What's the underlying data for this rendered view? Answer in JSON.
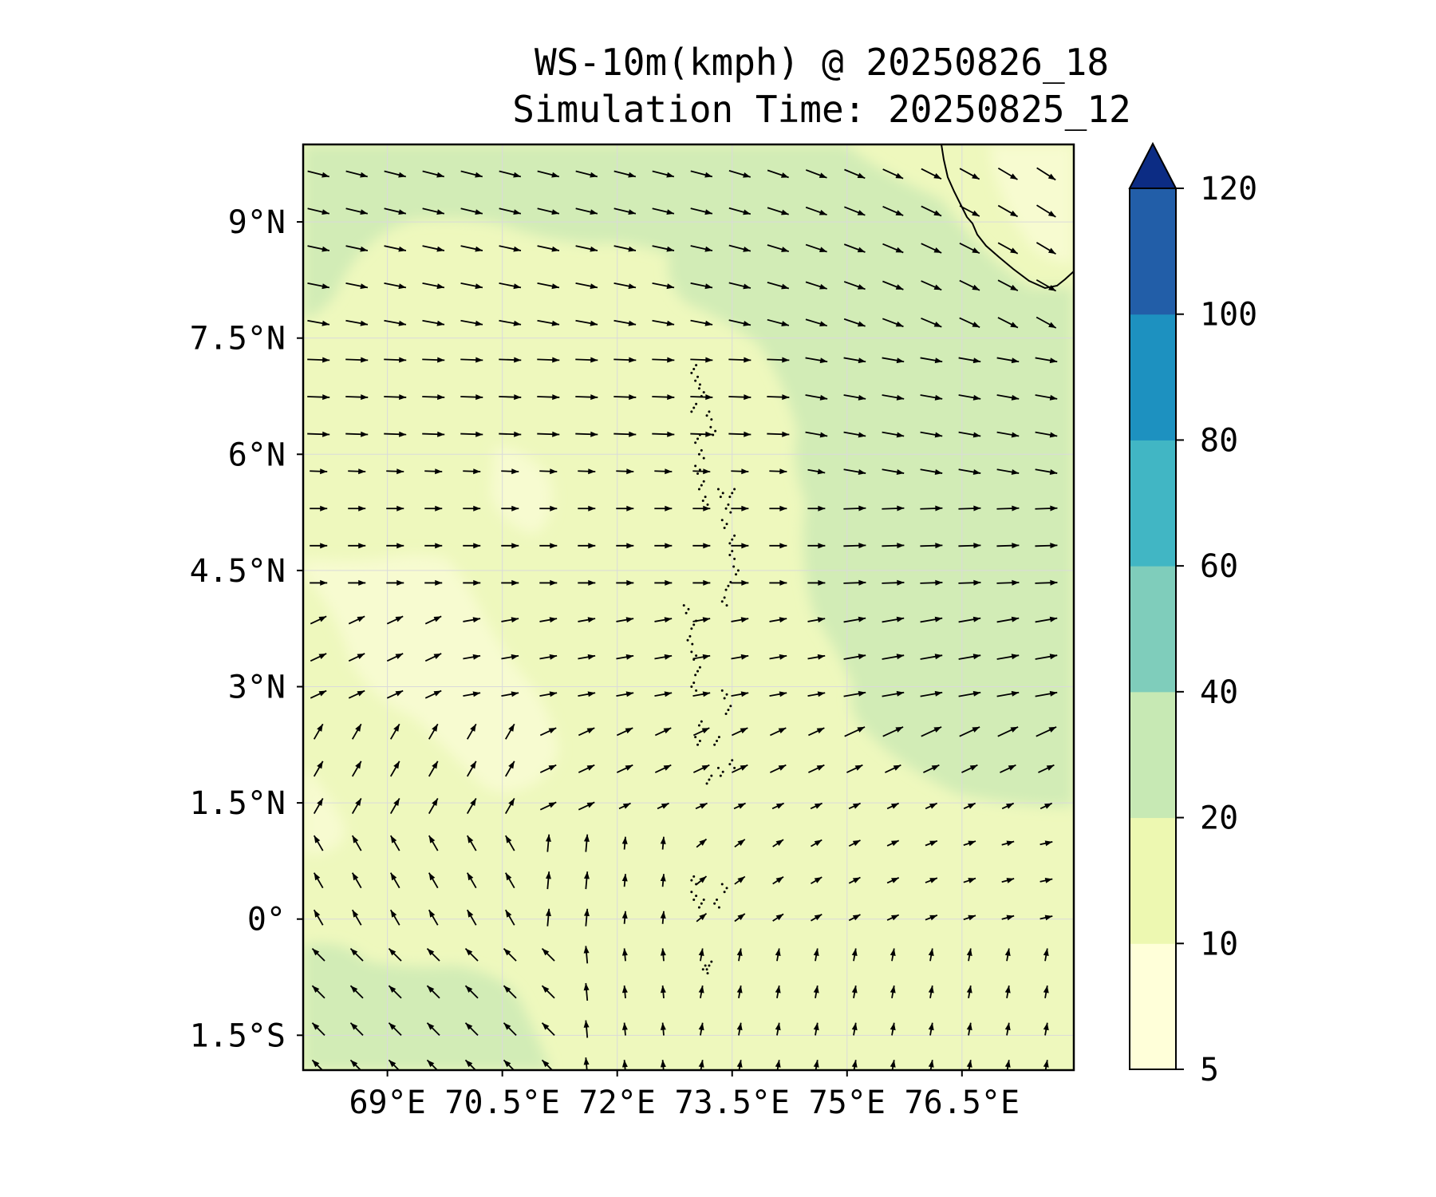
{
  "title": {
    "line1": "WS-10m(kmph) @ 20250826_18",
    "line2": "Simulation Time: 20250825_12"
  },
  "map": {
    "lon_range": [
      67.9,
      77.96
    ],
    "lat_range": [
      -1.95,
      10.0
    ],
    "lat_ticks": [
      {
        "value": 9,
        "label": "9°N"
      },
      {
        "value": 7.5,
        "label": "7.5°N"
      },
      {
        "value": 6,
        "label": "6°N"
      },
      {
        "value": 4.5,
        "label": "4.5°N"
      },
      {
        "value": 3,
        "label": "3°N"
      },
      {
        "value": 1.5,
        "label": "1.5°N"
      },
      {
        "value": 0,
        "label": "0°"
      },
      {
        "value": -1.5,
        "label": "1.5°S"
      }
    ],
    "lon_ticks": [
      {
        "value": 69,
        "label": "69°E"
      },
      {
        "value": 70.5,
        "label": "70.5°E"
      },
      {
        "value": 72,
        "label": "72°E"
      },
      {
        "value": 73.5,
        "label": "73.5°E"
      },
      {
        "value": 75,
        "label": "75°E"
      },
      {
        "value": 76.5,
        "label": "76.5°E"
      }
    ],
    "gridlines": true
  },
  "colorbar": {
    "levels": [
      5,
      10,
      20,
      40,
      60,
      80,
      100,
      120
    ],
    "labels": [
      "5",
      "10",
      "20",
      "40",
      "60",
      "80",
      "100",
      "120"
    ],
    "colors": [
      "#ffffd9",
      "#edf8b1",
      "#c7e9b4",
      "#7fcdbb",
      "#41b6c4",
      "#1d91c0",
      "#225ea8",
      "#0c2c84"
    ],
    "extend": "max"
  }
}
